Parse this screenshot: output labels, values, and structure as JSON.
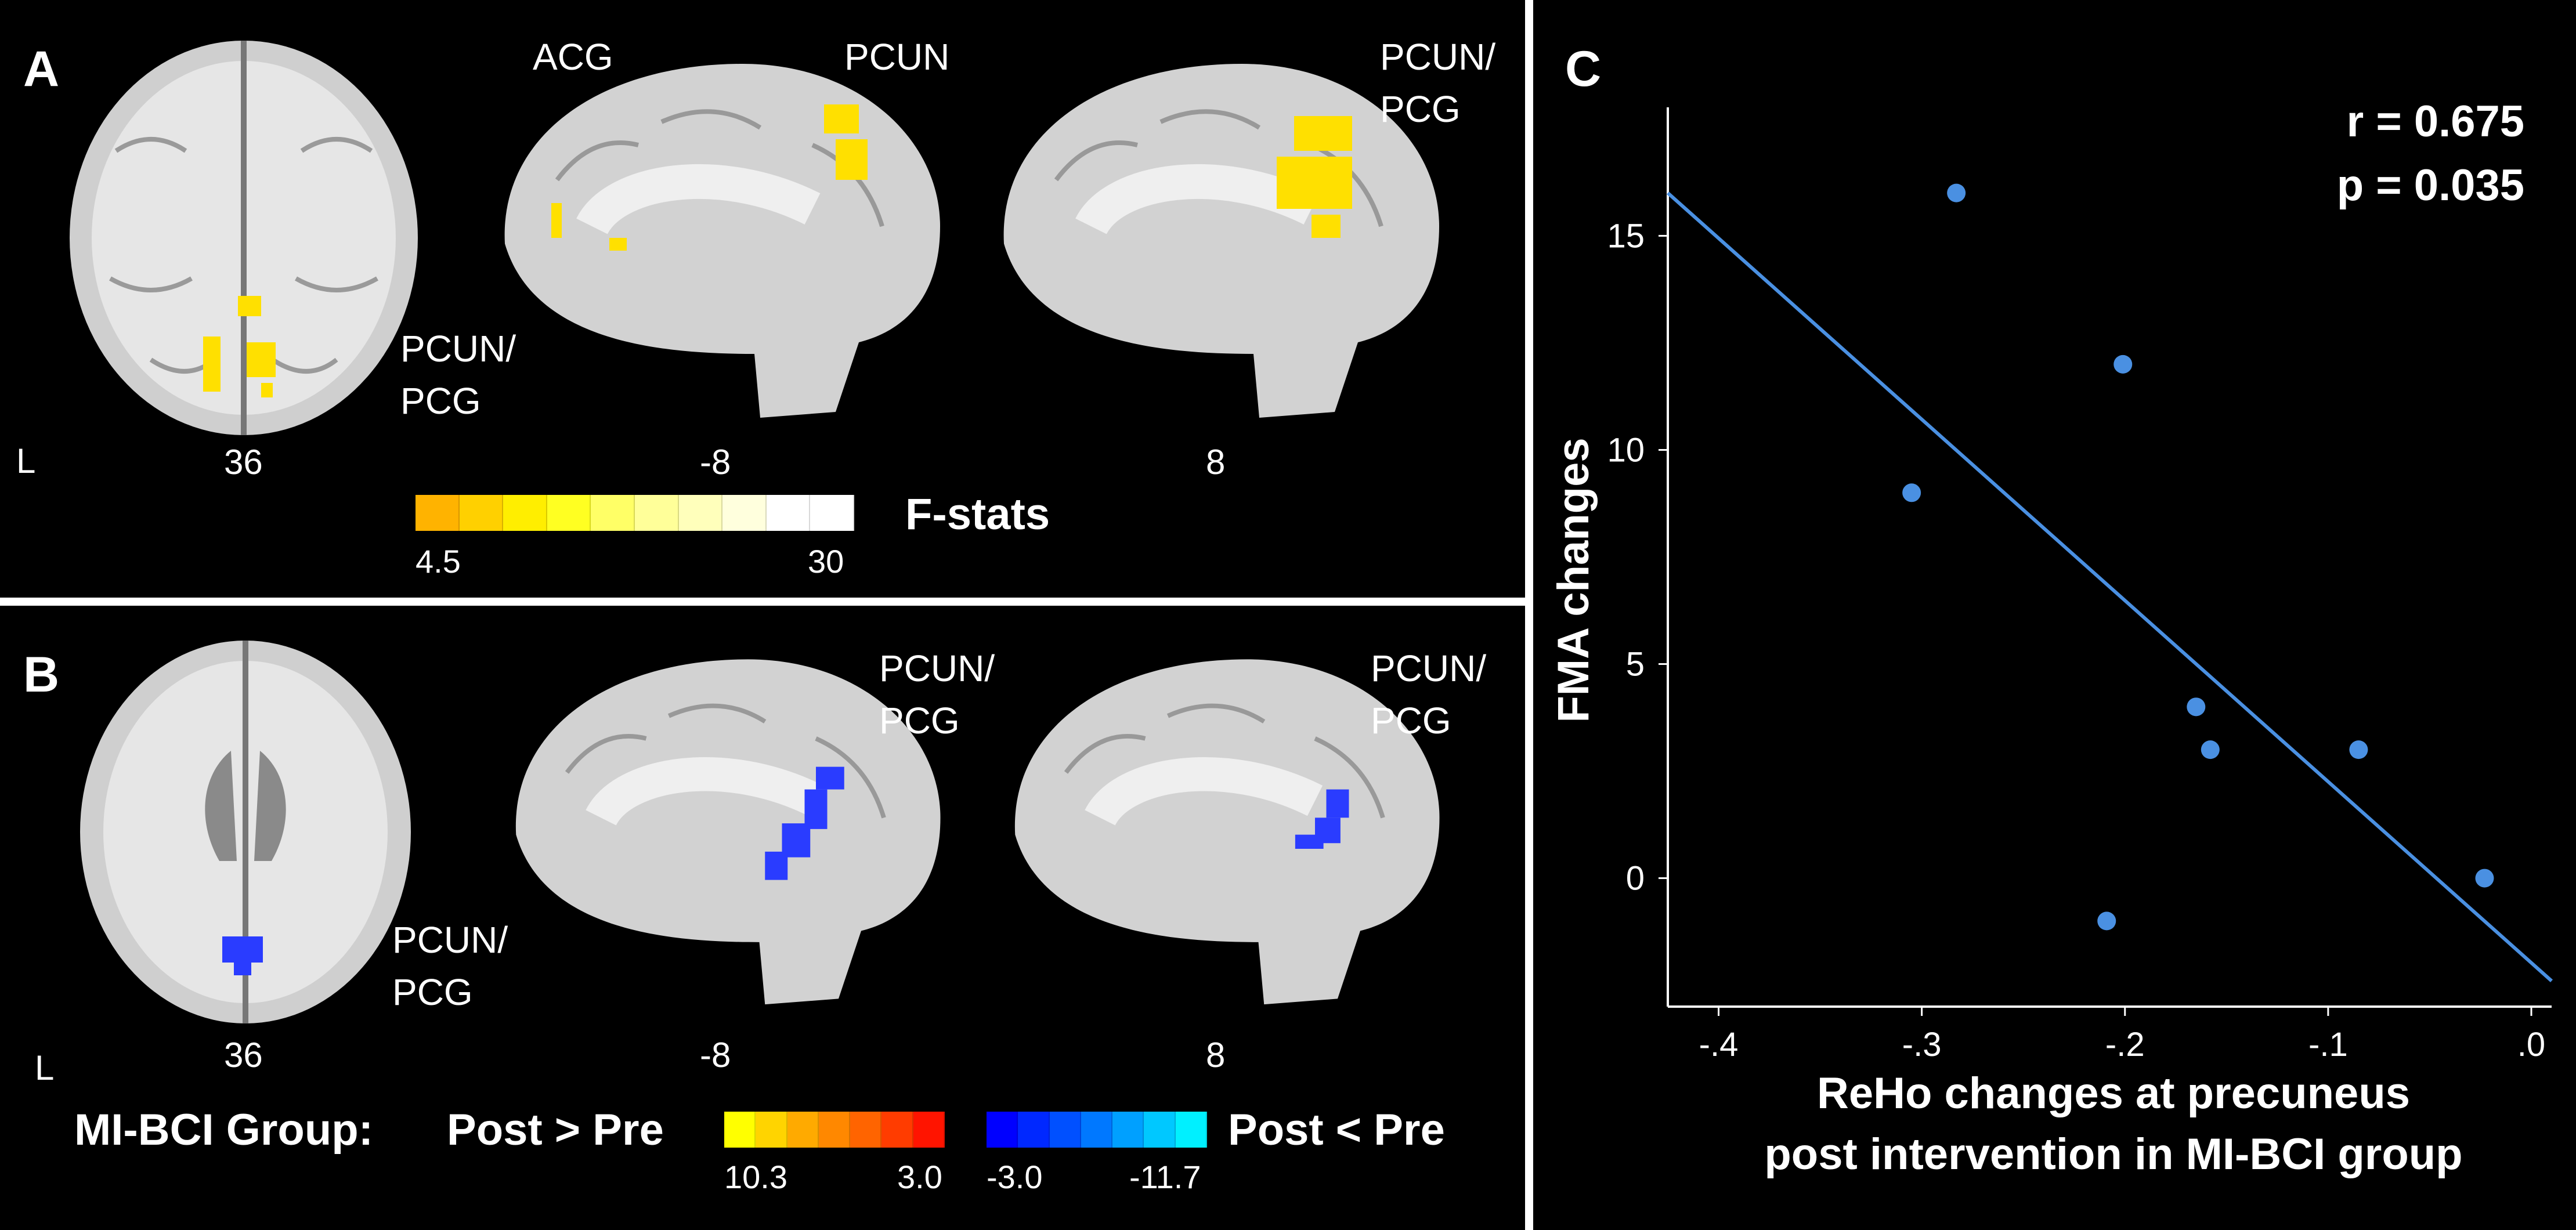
{
  "panels": {
    "A": {
      "letter": "A",
      "region_labels": [
        "ACG",
        "PCUN",
        "PCUN/",
        "PCG",
        "PCUN/",
        "PCG"
      ],
      "hemisphere": "L",
      "slices": [
        "36",
        "-8",
        "8"
      ],
      "legend": {
        "title": "F-stats",
        "min": "4.5",
        "max": "30",
        "colors": [
          "#ffb300",
          "#ffd000",
          "#ffee00",
          "#ffff22",
          "#ffff66",
          "#ffff99",
          "#ffffbb",
          "#ffffdd",
          "#ffffff",
          "#ffffff"
        ]
      }
    },
    "B": {
      "letter": "B",
      "region_labels": [
        "PCUN/",
        "PCG",
        "PCUN/",
        "PCG",
        "PCUN/",
        "PCG"
      ],
      "hemisphere": "L",
      "slices": [
        "36",
        "-8",
        "8"
      ],
      "legend": {
        "group_label": "MI-BCI Group:",
        "pos_label": "Post > Pre",
        "neg_label": "Post < Pre",
        "pos_min": "10.3",
        "pos_max": "3.0",
        "neg_min": "-3.0",
        "neg_max": "-11.7",
        "pos_colors": [
          "#ffff00",
          "#ffd400",
          "#ffaa00",
          "#ff8800",
          "#ff6400",
          "#ff3c00",
          "#ff1400"
        ],
        "neg_colors": [
          "#0000ff",
          "#0028ff",
          "#0050ff",
          "#0078ff",
          "#00a0ff",
          "#00c8ff",
          "#00f0ff"
        ]
      }
    },
    "C": {
      "letter": "C",
      "stat_r": "r = 0.675",
      "stat_p": "p = 0.035"
    }
  },
  "chart_data": {
    "type": "scatter",
    "title": "",
    "xlabel_line1": "ReHo changes at precuneus",
    "xlabel_line2": "post intervention in MI-BCI group",
    "ylabel": "FMA changes",
    "xlim": [
      -0.425,
      0.01
    ],
    "ylim": [
      -3,
      18
    ],
    "xticks": [
      -0.4,
      -0.3,
      -0.2,
      -0.1,
      0.0
    ],
    "xtick_labels": [
      "-.4",
      "-.3",
      "-.2",
      "-.1",
      ".0"
    ],
    "yticks": [
      0,
      5,
      10,
      15
    ],
    "ytick_labels": [
      "0",
      "5",
      "10",
      "15"
    ],
    "points": [
      {
        "x": -0.305,
        "y": 9
      },
      {
        "x": -0.283,
        "y": 16
      },
      {
        "x": -0.201,
        "y": 12
      },
      {
        "x": -0.209,
        "y": -1
      },
      {
        "x": -0.165,
        "y": 4
      },
      {
        "x": -0.158,
        "y": 3
      },
      {
        "x": -0.085,
        "y": 3
      },
      {
        "x": -0.023,
        "y": 0
      }
    ],
    "fit_line": {
      "x1": -0.425,
      "y1": 16.0,
      "x2": 0.01,
      "y2": -2.4
    },
    "colors": {
      "point": "#4a90e2",
      "line": "#4a90e2"
    }
  }
}
